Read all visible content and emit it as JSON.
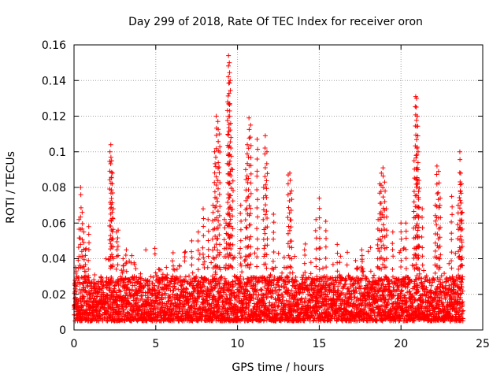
{
  "chart_data": {
    "type": "scatter",
    "title": "Day 299 of 2018, Rate Of TEC Index for receiver oron",
    "xlabel": "GPS time / hours",
    "ylabel": "ROTI / TECUs",
    "xlim": [
      0,
      25
    ],
    "ylim": [
      0,
      0.16
    ],
    "xticks": [
      0,
      5,
      10,
      15,
      20,
      25
    ],
    "xtick_labels": [
      "0",
      "5",
      "10",
      "15",
      "20",
      "25"
    ],
    "yticks": [
      0,
      0.02,
      0.04,
      0.06,
      0.08,
      0.1,
      0.12,
      0.14,
      0.16
    ],
    "ytick_labels": [
      "0",
      "0.02",
      "0.04",
      "0.06",
      "0.08",
      "0.1",
      "0.12",
      "0.14",
      "0.16"
    ],
    "grid": true,
    "marker": "+",
    "color": "#ff0000",
    "x_range_of_data": [
      0,
      23.8
    ],
    "baseline_band": [
      0.005,
      0.03
    ],
    "series": [
      {
        "name": "ROTI",
        "x": [
          0.1,
          0.3,
          0.4,
          0.5,
          0.6,
          0.7,
          0.9,
          2.2,
          2.25,
          2.3,
          2.35,
          2.4,
          2.6,
          2.7,
          3.0,
          3.2,
          7.2,
          7.6,
          7.9,
          8.2,
          8.5,
          8.6,
          8.7,
          8.8,
          8.9,
          9.2,
          9.3,
          9.4,
          9.45,
          9.5,
          9.55,
          9.6,
          9.7,
          10.2,
          10.5,
          10.6,
          10.7,
          10.8,
          11.2,
          11.6,
          11.7,
          11.8,
          12.2,
          13.1,
          13.2,
          13.3,
          14.1,
          14.8,
          15.0,
          15.4,
          16.1,
          17.6,
          18.6,
          18.7,
          18.8,
          18.9,
          19.0,
          19.1,
          19.5,
          20.0,
          20.3,
          20.8,
          20.9,
          20.95,
          21.0,
          21.05,
          21.1,
          21.3,
          22.1,
          22.2,
          22.3,
          22.4,
          23.1,
          23.5,
          23.6,
          23.65,
          23.7,
          23.75
        ],
        "y": [
          0.035,
          0.062,
          0.08,
          0.066,
          0.055,
          0.045,
          0.058,
          0.1,
          0.104,
          0.095,
          0.088,
          0.068,
          0.055,
          0.056,
          0.04,
          0.045,
          0.05,
          0.055,
          0.068,
          0.062,
          0.07,
          0.1,
          0.12,
          0.117,
          0.11,
          0.062,
          0.06,
          0.128,
          0.154,
          0.15,
          0.14,
          0.108,
          0.09,
          0.07,
          0.09,
          0.104,
          0.119,
          0.115,
          0.107,
          0.08,
          0.109,
          0.1,
          0.065,
          0.087,
          0.088,
          0.078,
          0.045,
          0.062,
          0.074,
          0.061,
          0.048,
          0.045,
          0.062,
          0.082,
          0.088,
          0.091,
          0.083,
          0.068,
          0.055,
          0.06,
          0.06,
          0.095,
          0.131,
          0.13,
          0.12,
          0.1,
          0.084,
          0.068,
          0.07,
          0.092,
          0.089,
          0.074,
          0.075,
          0.07,
          0.1,
          0.088,
          0.082,
          0.066
        ]
      }
    ]
  }
}
